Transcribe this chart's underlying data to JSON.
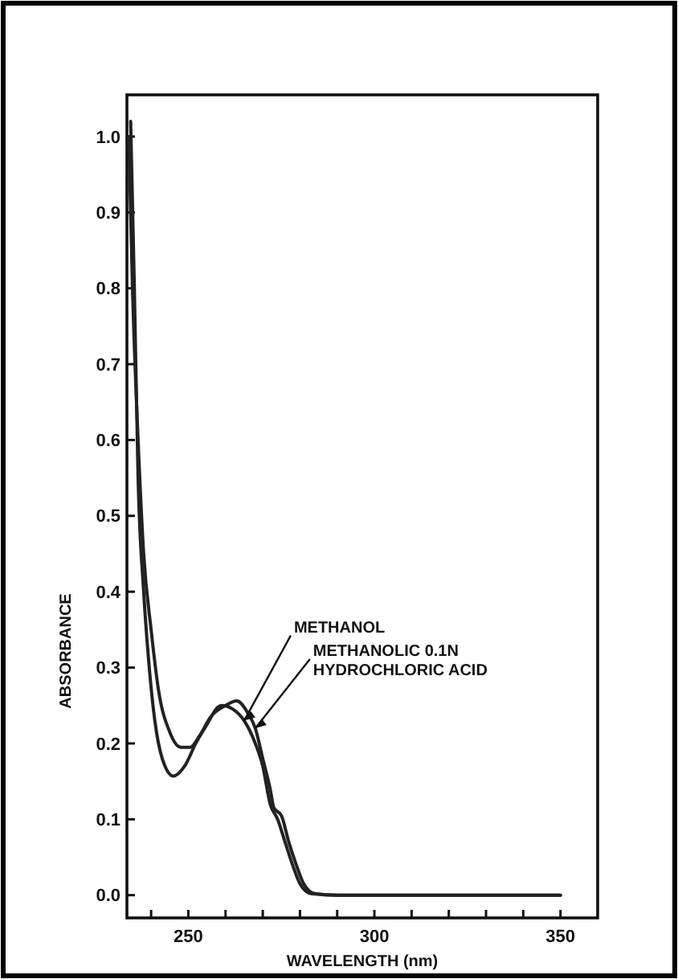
{
  "chart_data": {
    "type": "line",
    "xlabel": "WAVELENGTH (nm)",
    "ylabel": "ABSORBANCE",
    "xlim": [
      233.5,
      360
    ],
    "ylim": [
      -0.03,
      1.055
    ],
    "xticks": [
      {
        "value": 240,
        "label": null
      },
      250,
      {
        "value": 260,
        "label": null
      },
      {
        "value": 270,
        "label": null
      },
      {
        "value": 280,
        "label": null
      },
      {
        "value": 290,
        "label": null
      },
      300,
      {
        "value": 310,
        "label": null
      },
      {
        "value": 320,
        "label": null
      },
      {
        "value": 330,
        "label": null
      },
      {
        "value": 340,
        "label": null
      },
      350
    ],
    "yticks": [
      {
        "value": 0,
        "label": "0.0"
      },
      0.1,
      0.2,
      0.3,
      0.4,
      0.5,
      0.6,
      0.7,
      0.8,
      0.9,
      {
        "value": 1,
        "label": "1.0"
      }
    ],
    "grid": false,
    "marker": "none",
    "line_style": "solid",
    "series": [
      {
        "color": "#222222",
        "x": [
          234.5,
          235.5,
          236.5,
          238,
          239.5,
          241,
          243,
          246,
          249,
          252,
          255,
          258,
          259,
          262,
          265,
          268,
          270,
          272,
          274,
          276,
          278,
          280,
          283,
          290,
          350
        ],
        "values": [
          1.02,
          0.8,
          0.55,
          0.4,
          0.3,
          0.23,
          0.18,
          0.157,
          0.17,
          0.2,
          0.225,
          0.248,
          0.25,
          0.245,
          0.23,
          0.2,
          0.17,
          0.12,
          0.1,
          0.07,
          0.04,
          0.015,
          0.002,
          0,
          0
        ]
      },
      {
        "color": "#222222",
        "x": [
          234,
          235,
          236.5,
          238,
          240,
          242,
          245,
          248,
          250.5,
          253,
          256,
          260,
          263,
          266,
          268,
          270,
          272,
          273,
          275,
          277,
          279,
          281,
          284,
          290,
          350
        ],
        "values": [
          1,
          0.8,
          0.6,
          0.45,
          0.35,
          0.27,
          0.215,
          0.195,
          0.195,
          0.21,
          0.235,
          0.25,
          0.256,
          0.24,
          0.22,
          0.18,
          0.14,
          0.115,
          0.105,
          0.07,
          0.04,
          0.015,
          0.002,
          0,
          0
        ]
      }
    ],
    "annotations": [
      {
        "text": "METHANOL",
        "x": 265,
        "y": 0.23
      },
      {
        "text": "METHANOLIC 0.1N\nHYDROCHLORIC ACID",
        "x": 268,
        "y": 0.22
      }
    ]
  }
}
